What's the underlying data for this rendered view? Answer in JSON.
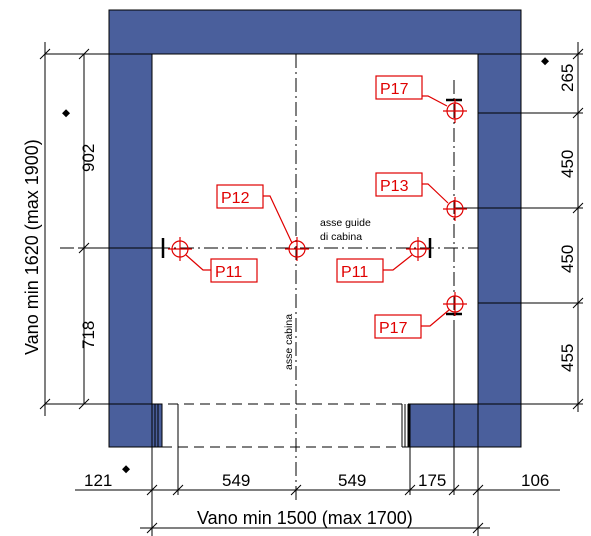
{
  "colors": {
    "wall": "#4a5f9c",
    "points": "#e00000",
    "lines": "#000000"
  },
  "labels": {
    "width_text": "Vano min 1500 (max 1700)",
    "height_text": "Vano min 1620 (max 1900)",
    "guide_axis": "asse guide",
    "guide_axis_2": "di cabina",
    "car_axis": "asse cabina"
  },
  "dimensions": {
    "bottom": [
      "121",
      "549",
      "549",
      "175",
      "106"
    ],
    "left": [
      "902",
      "718"
    ],
    "right": [
      "265",
      "450",
      "450",
      "455"
    ]
  },
  "marks": {
    "diamond": "◆"
  },
  "points": [
    {
      "id": "P17",
      "label": "P17"
    },
    {
      "id": "P13",
      "label": "P13"
    },
    {
      "id": "P12",
      "label": "P12"
    },
    {
      "id": "P11a",
      "label": "P11"
    },
    {
      "id": "P11b",
      "label": "P11"
    },
    {
      "id": "P17b",
      "label": "P17"
    }
  ]
}
